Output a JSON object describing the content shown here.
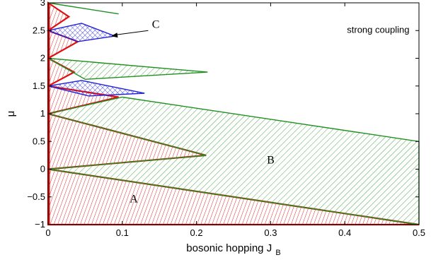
{
  "chart_data": {
    "type": "area",
    "title": "",
    "xlabel": "bosonic hopping J",
    "xlabel_subscript": "B",
    "ylabel": "μ",
    "xlim": [
      0,
      0.5
    ],
    "ylim": [
      -1,
      3
    ],
    "x_ticks": [
      0,
      0.1,
      0.2,
      0.3,
      0.4,
      0.5
    ],
    "x_tick_labels": [
      "0",
      "0.1",
      "0.2",
      "0.3",
      "0.4",
      "0.5"
    ],
    "y_ticks": [
      -1,
      -0.5,
      0,
      0.5,
      1,
      1.5,
      2,
      2.5,
      3
    ],
    "y_tick_labels": [
      "−1",
      "−0.5",
      "0",
      "0.5",
      "1",
      "1.5",
      "2",
      "2.5",
      "3"
    ],
    "grid": false,
    "annotation": "strong coupling",
    "colors": {
      "red": "#e01010",
      "green": "#1f8f1f",
      "blue": "#2020dd",
      "axis": "#000000"
    },
    "regions": [
      {
        "label": "A",
        "label_at": [
          0.11,
          -0.6
        ],
        "color": "red",
        "hatch": "dense",
        "polygons": [
          [
            [
              0,
              0
            ],
            [
              0.5,
              -1
            ],
            [
              0,
              -1
            ]
          ],
          [
            [
              0,
              0
            ],
            [
              0.213,
              0.25
            ],
            [
              0,
              1
            ]
          ],
          [
            [
              0,
              1
            ],
            [
              0.095,
              1.3
            ],
            [
              0,
              1.5
            ]
          ],
          [
            [
              0,
              1.5
            ],
            [
              0,
              2
            ],
            [
              0.035,
              1.75
            ]
          ],
          [
            [
              0,
              2
            ],
            [
              0.04,
              2.3
            ],
            [
              0,
              2.5
            ]
          ],
          [
            [
              0,
              2.5
            ],
            [
              0,
              3
            ],
            [
              0.028,
              2.75
            ]
          ]
        ]
      },
      {
        "label": "B",
        "label_at": [
          0.295,
          0.1
        ],
        "color": "green",
        "hatch": "sparse",
        "polygons": [
          [
            [
              0,
              0
            ],
            [
              0.213,
              0.25
            ],
            [
              0,
              1
            ],
            [
              0.1,
              1.3
            ],
            [
              0.5,
              0.5
            ],
            [
              0.5,
              -1
            ]
          ],
          [
            [
              0,
              2
            ],
            [
              0.215,
              1.75
            ],
            [
              0.05,
              1.62
            ],
            [
              0,
              2
            ]
          ],
          [
            [
              0,
              3
            ],
            [
              0.095,
              2.8
            ],
            [
              0,
              3
            ]
          ]
        ]
      },
      {
        "label": "C",
        "label_at": [
          0.14,
          2.55
        ],
        "color": "blue",
        "hatch": "cross",
        "polygons": [
          [
            [
              0,
              1.5
            ],
            [
              0.045,
              1.6
            ],
            [
              0.13,
              1.37
            ],
            [
              0.055,
              1.32
            ]
          ],
          [
            [
              0,
              2.5
            ],
            [
              0.045,
              2.63
            ],
            [
              0.09,
              2.4
            ],
            [
              0.04,
              2.3
            ]
          ]
        ]
      }
    ],
    "arrow": {
      "from": [
        0.135,
        2.5
      ],
      "to": [
        0.085,
        2.4
      ]
    }
  }
}
